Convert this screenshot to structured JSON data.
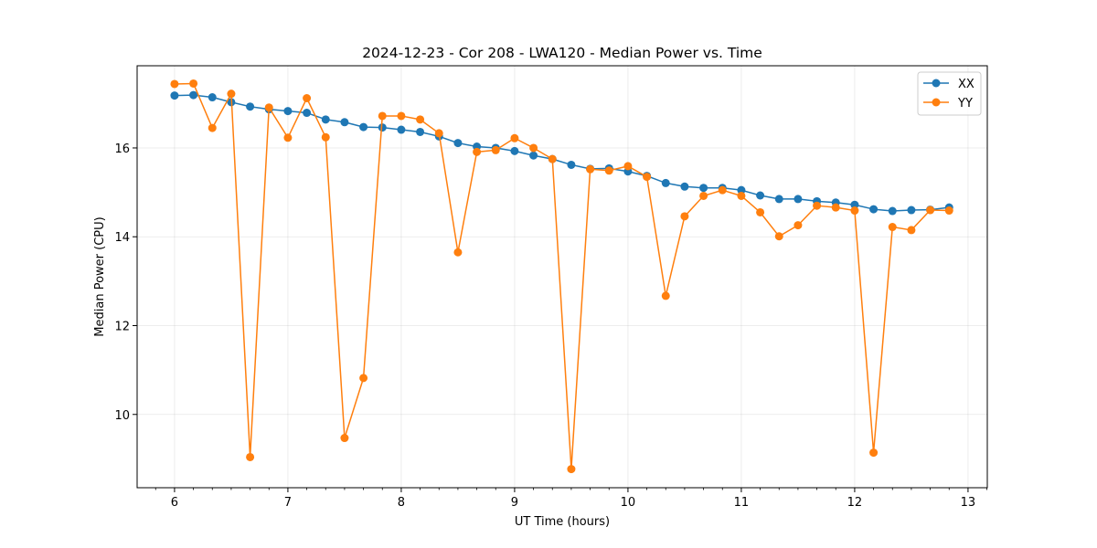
{
  "chart_data": {
    "type": "line",
    "title": "2024-12-23 - Cor 208 - LWA120 - Median Power vs. Time",
    "xlabel": "UT Time (hours)",
    "ylabel": "Median Power (CPU)",
    "xlim": [
      5.67,
      13.17
    ],
    "ylim": [
      8.35,
      17.85
    ],
    "xticks": [
      6,
      7,
      8,
      9,
      10,
      11,
      12,
      13
    ],
    "yticks": [
      10,
      12,
      14,
      16
    ],
    "grid": true,
    "legend_position": "top-right",
    "x": [
      6.0,
      6.1667,
      6.3333,
      6.5,
      6.6667,
      6.8333,
      7.0,
      7.1667,
      7.3333,
      7.5,
      7.6667,
      7.8333,
      8.0,
      8.1667,
      8.3333,
      8.5,
      8.6667,
      8.8333,
      9.0,
      9.1667,
      9.3333,
      9.5,
      9.6667,
      9.8333,
      10.0,
      10.1667,
      10.3333,
      10.5,
      10.6667,
      10.8333,
      11.0,
      11.1667,
      11.3333,
      11.5,
      11.6667,
      11.8333,
      12.0,
      12.1667,
      12.3333,
      12.5,
      12.6667,
      12.8333
    ],
    "series": [
      {
        "name": "XX",
        "color": "#1f77b4",
        "values": [
          17.18,
          17.19,
          17.14,
          17.03,
          16.93,
          16.87,
          16.83,
          16.79,
          16.64,
          16.58,
          16.47,
          16.46,
          16.41,
          16.36,
          16.26,
          16.11,
          16.03,
          16.0,
          15.93,
          15.83,
          15.75,
          15.62,
          15.53,
          15.54,
          15.47,
          15.37,
          15.21,
          15.13,
          15.1,
          15.1,
          15.05,
          14.93,
          14.85,
          14.85,
          14.8,
          14.77,
          14.72,
          14.62,
          14.58,
          14.6,
          14.61,
          14.66
        ]
      },
      {
        "name": "YY",
        "color": "#ff7f0e",
        "values": [
          17.44,
          17.45,
          16.45,
          17.22,
          9.04,
          16.91,
          16.23,
          17.12,
          16.24,
          9.47,
          10.82,
          16.72,
          16.72,
          16.64,
          16.33,
          13.65,
          15.91,
          15.95,
          16.22,
          16.0,
          15.75,
          8.77,
          15.52,
          15.49,
          15.59,
          15.35,
          12.67,
          14.46,
          14.92,
          15.05,
          14.92,
          14.55,
          14.01,
          14.26,
          14.7,
          14.66,
          14.59,
          9.14,
          14.22,
          14.15,
          14.6,
          14.59
        ]
      }
    ]
  }
}
